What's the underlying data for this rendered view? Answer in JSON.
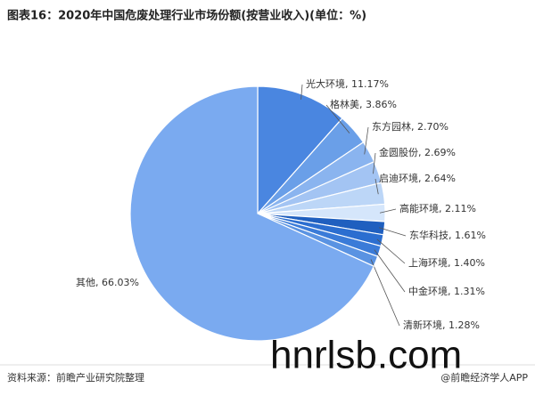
{
  "chart_data": {
    "type": "pie",
    "title": "图表16：2020年中国危废处理行业市场份额(按营业收入)(单位：%)",
    "categories": [
      "光大环境",
      "格林美",
      "东方园林",
      "金圆股份",
      "启迪环境",
      "高能环境",
      "东华科技",
      "上海环境",
      "中金环境",
      "清新环境",
      "其他"
    ],
    "values": [
      11.17,
      3.86,
      2.7,
      2.69,
      2.64,
      2.11,
      1.61,
      1.4,
      1.31,
      1.28,
      66.03
    ],
    "value_labels": [
      "光大环境, 11.17%",
      "格林美, 3.86%",
      "东方园林, 2.70%",
      "金圆股份, 2.69%",
      "启迪环境, 2.64%",
      "高能环境, 2.11%",
      "东华科技, 1.61%",
      "上海环境, 1.40%",
      "中金环境, 1.31%",
      "清新环境, 1.28%",
      "其他, 66.03%"
    ],
    "colors": [
      "#4a86e0",
      "#6a9fe8",
      "#8ab4ef",
      "#a3c4f3",
      "#bcd6f7",
      "#d5e6fb",
      "#1f5fbf",
      "#2b6ed0",
      "#3a7bd8",
      "#5a93e2",
      "#7aaaf0"
    ],
    "source": "资料来源：前瞻产业研究院整理",
    "credit": "@前瞻经济学人APP",
    "watermark": "hnrlsb.com"
  }
}
